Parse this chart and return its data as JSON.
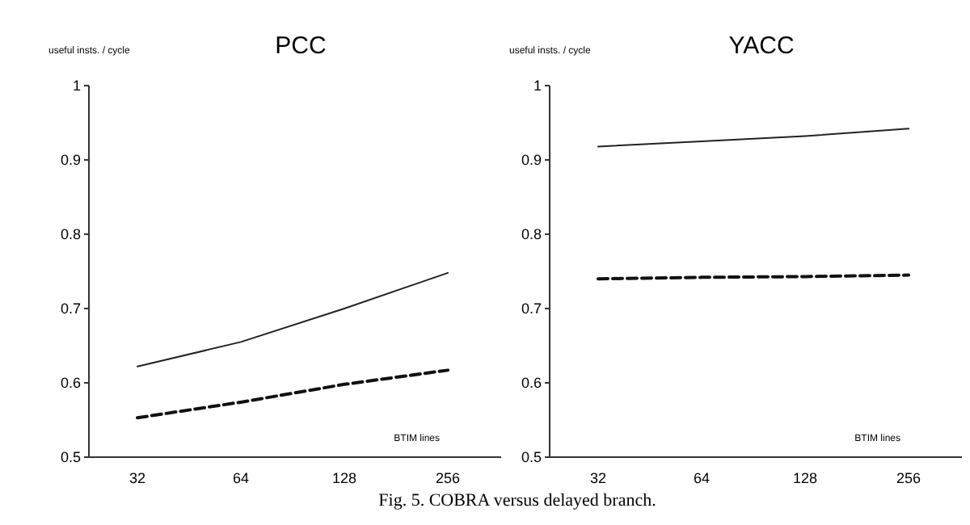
{
  "chart_data": [
    {
      "type": "line",
      "title": "PCC",
      "ylabel": "useful insts. / cycle",
      "xlabel": "BTIM lines",
      "categories": [
        "32",
        "64",
        "128",
        "256"
      ],
      "ylim": [
        0.5,
        1
      ],
      "yticks": [
        0.5,
        0.6,
        0.7,
        0.8,
        0.9,
        1
      ],
      "marker": "none",
      "series": [
        {
          "color": "#222222",
          "line_style": "solid",
          "values": [
            0.622,
            0.655,
            0.7,
            0.748
          ]
        },
        {
          "color": "#111111",
          "line_style": "dashed",
          "values": [
            0.553,
            0.574,
            0.598,
            0.617
          ]
        }
      ],
      "annotations": [
        "Fig. 5.   COBRA versus delayed branch."
      ]
    },
    {
      "type": "line",
      "title": "YACC",
      "ylabel": "useful insts. / cycle",
      "xlabel": "BTIM lines",
      "categories": [
        "32",
        "64",
        "128",
        "256"
      ],
      "ylim": [
        0.5,
        1
      ],
      "yticks": [
        0.5,
        0.6,
        0.7,
        0.8,
        0.9,
        1
      ],
      "marker": "none",
      "series": [
        {
          "color": "#222222",
          "line_style": "solid",
          "values": [
            0.918,
            0.925,
            0.932,
            0.942
          ]
        },
        {
          "color": "#111111",
          "line_style": "dashed",
          "values": [
            0.74,
            0.742,
            0.743,
            0.745
          ]
        }
      ]
    }
  ]
}
